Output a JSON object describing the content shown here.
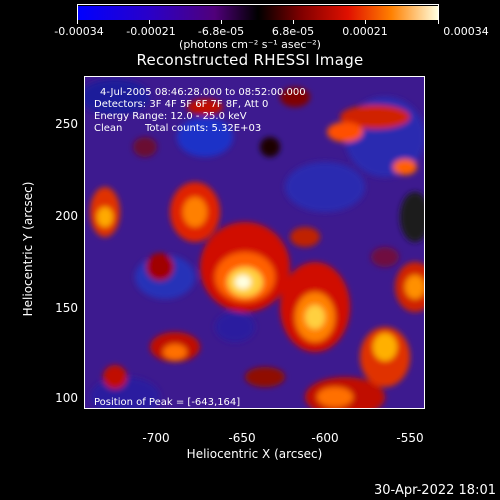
{
  "colorbar": {
    "tick_labels": [
      "-0.00034",
      "-0.00021",
      "-6.8e-05",
      "6.8e-05",
      "0.00021",
      "0.00034"
    ],
    "units": "(photons cm⁻² s⁻¹ asec⁻²)",
    "colors": [
      "#0000ff",
      "#3000c0",
      "#500080",
      "#000000",
      "#800000",
      "#d00000",
      "#ff6000",
      "#ffc000",
      "#ffffe0"
    ]
  },
  "title": "Reconstructed RHESSI Image",
  "annotations": {
    "time_range": "4-Jul-2005 08:46:28.000 to 08:52:00.000",
    "detectors": "Detectors: 3F 4F 5F 6F 7F 8F, Att 0",
    "energy": "Energy Range: 12.0 - 25.0 keV",
    "method": "Clean",
    "counts": "Total counts: 5.32E+03",
    "peak": "Position of Peak = [-643,164]"
  },
  "axes": {
    "xlabel": "Heliocentric X (arcsec)",
    "ylabel": "Heliocentric Y (arcsec)",
    "xticks": [
      "-700",
      "-650",
      "-600",
      "-550"
    ],
    "yticks": [
      "250",
      "200",
      "150",
      "100"
    ],
    "xlim": [
      -736,
      -545
    ],
    "ylim": [
      88,
      276
    ]
  },
  "footer": "30-Apr-2022 18:01"
}
